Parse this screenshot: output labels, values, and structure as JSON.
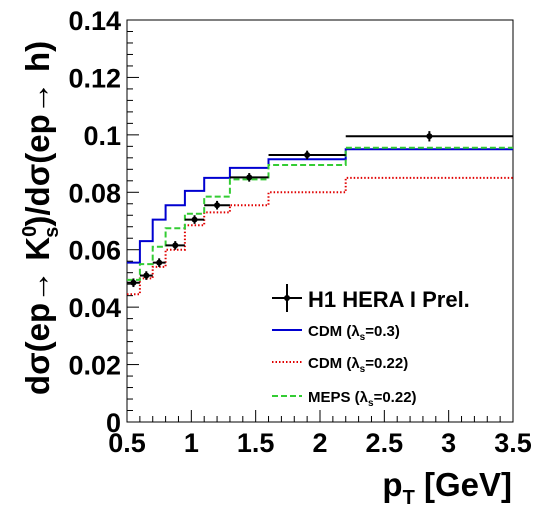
{
  "chart_data": {
    "type": "line",
    "xlabel_base": "p",
    "xlabel_sub": "T",
    "xlabel_unit": " [GeV]",
    "ylabel_parts": {
      "a": "dσ(ep→ K",
      "sup": "0",
      "sub": "s",
      "b": ")/dσ(ep→ h)"
    },
    "xlim": [
      0.5,
      3.5
    ],
    "ylim": [
      0,
      0.14
    ],
    "xticks": [
      0.5,
      1,
      1.5,
      2,
      2.5,
      3,
      3.5
    ],
    "xtick_labels": [
      "0.5",
      "1",
      "1.5",
      "2",
      "2.5",
      "3",
      "3.5"
    ],
    "yticks": [
      0,
      0.02,
      0.04,
      0.06,
      0.08,
      0.1,
      0.12,
      0.14
    ],
    "ytick_labels": [
      "0",
      "0.02",
      "0.04",
      "0.06",
      "0.08",
      "0.1",
      "0.12",
      "0.14"
    ],
    "grid": false,
    "legend_position": "bottom-right",
    "data_points": {
      "name": "H1 HERA I Prel.",
      "color": "#000000",
      "points": [
        {
          "x": 0.55,
          "xlo": 0.5,
          "xhi": 0.6,
          "y": 0.0485,
          "err": 0.0015
        },
        {
          "x": 0.65,
          "xlo": 0.6,
          "xhi": 0.7,
          "y": 0.051,
          "err": 0.0015
        },
        {
          "x": 0.75,
          "xlo": 0.7,
          "xhi": 0.8,
          "y": 0.0555,
          "err": 0.0015
        },
        {
          "x": 0.875,
          "xlo": 0.8,
          "xhi": 0.95,
          "y": 0.0615,
          "err": 0.0015
        },
        {
          "x": 1.025,
          "xlo": 0.95,
          "xhi": 1.1,
          "y": 0.0705,
          "err": 0.0015
        },
        {
          "x": 1.2,
          "xlo": 1.1,
          "xhi": 1.3,
          "y": 0.0755,
          "err": 0.0015
        },
        {
          "x": 1.45,
          "xlo": 1.3,
          "xhi": 1.6,
          "y": 0.0852,
          "err": 0.0015
        },
        {
          "x": 1.9,
          "xlo": 1.6,
          "xhi": 2.2,
          "y": 0.093,
          "err": 0.0015
        },
        {
          "x": 2.85,
          "xlo": 2.2,
          "xhi": 3.5,
          "y": 0.0995,
          "err": 0.0018
        }
      ]
    },
    "series": [
      {
        "name": "CDM (λs=0.3)",
        "label_a": "CDM (λ",
        "label_sub": "s",
        "label_b": "=0.3)",
        "color": "#0000d0",
        "dash": "",
        "edges": [
          0.5,
          0.6,
          0.7,
          0.8,
          0.95,
          1.1,
          1.3,
          1.6,
          2.2,
          3.5
        ],
        "values": [
          0.0555,
          0.063,
          0.0705,
          0.0755,
          0.0805,
          0.085,
          0.0885,
          0.0915,
          0.095
        ]
      },
      {
        "name": "CDM (λs=0.22)",
        "label_a": "CDM (λ",
        "label_sub": "s",
        "label_b": "=0.22)",
        "color": "#e00000",
        "dash": "1.5,2",
        "edges": [
          0.5,
          0.6,
          0.7,
          0.8,
          0.95,
          1.1,
          1.3,
          1.6,
          2.2,
          3.5
        ],
        "values": [
          0.0445,
          0.05,
          0.054,
          0.06,
          0.0685,
          0.073,
          0.0755,
          0.08,
          0.085
        ]
      },
      {
        "name": "MEPS (λs=0.22)",
        "label_a": "MEPS (λ",
        "label_sub": "s",
        "label_b": "=0.22)",
        "color": "#33cc33",
        "dash": "6,3",
        "edges": [
          0.5,
          0.6,
          0.7,
          0.8,
          0.95,
          1.1,
          1.3,
          1.6,
          2.2,
          3.5
        ],
        "values": [
          0.0495,
          0.055,
          0.061,
          0.0675,
          0.0725,
          0.0785,
          0.0845,
          0.0895,
          0.0955
        ]
      }
    ]
  }
}
